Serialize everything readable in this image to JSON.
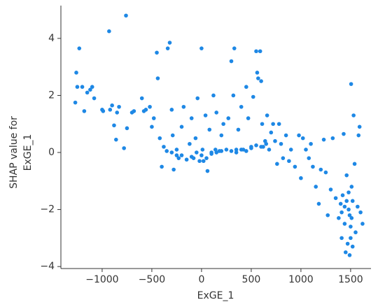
{
  "chart_data": {
    "type": "scatter",
    "xlabel": "ExGE_1",
    "ylabel": [
      "SHAP value for",
      "ExGE_1"
    ],
    "color": "#1e88e5",
    "xlim": [
      -1415,
      1705
    ],
    "ylim": [
      -4.07,
      5.15
    ],
    "xticks": [
      {
        "value": -1000,
        "label": "−1000"
      },
      {
        "value": -500,
        "label": "−500"
      },
      0,
      500,
      1000,
      1500
    ],
    "yticks": [
      {
        "value": -4,
        "label": "−4"
      },
      {
        "value": -2,
        "label": "−2"
      },
      0,
      2,
      4
    ],
    "x": [
      -1260,
      -1250,
      -1230,
      -1270,
      -1200,
      -1180,
      -1150,
      -1120,
      -1100,
      -1080,
      -1000,
      -990,
      -930,
      -920,
      -900,
      -880,
      -860,
      -850,
      -830,
      -780,
      -760,
      -750,
      -700,
      -680,
      -600,
      -580,
      -560,
      -520,
      -500,
      -480,
      -450,
      -440,
      -420,
      -400,
      -380,
      -350,
      -340,
      -320,
      -300,
      -290,
      -280,
      -250,
      -230,
      -200,
      -180,
      -150,
      -120,
      -100,
      -80,
      -60,
      -40,
      -20,
      0,
      10,
      20,
      40,
      50,
      60,
      80,
      100,
      120,
      140,
      150,
      180,
      200,
      220,
      250,
      270,
      300,
      320,
      330,
      350,
      370,
      400,
      420,
      450,
      470,
      500,
      520,
      550,
      560,
      570,
      590,
      600,
      610,
      620,
      640,
      660,
      680,
      700,
      720,
      740,
      760,
      780,
      800,
      820,
      850,
      880,
      900,
      940,
      980,
      1000,
      1020,
      1050,
      1080,
      1100,
      1120,
      1150,
      1180,
      1200,
      1230,
      1250,
      1270,
      1300,
      1320,
      1350,
      1380,
      1400,
      1410,
      1420,
      1430,
      1440,
      1450,
      1460,
      1470,
      1480,
      1490,
      1500,
      1505,
      1510,
      1520,
      1530,
      1540,
      1550,
      1570,
      1580,
      1590,
      1600,
      1620,
      1460,
      1480,
      1510,
      1500,
      1490,
      1520,
      1410,
      1440,
      -300,
      -200,
      -100,
      0,
      100,
      200,
      300,
      400,
      500,
      600,
      650,
      -250,
      -50,
      150,
      350,
      450,
      550
    ],
    "values": [
      2.8,
      2.3,
      3.65,
      1.75,
      2.3,
      1.45,
      2.1,
      2.2,
      2.3,
      1.9,
      1.5,
      1.45,
      4.25,
      1.5,
      1.65,
      0.95,
      0.45,
      1.4,
      1.6,
      0.15,
      4.8,
      0.85,
      1.4,
      1.45,
      1.9,
      1.45,
      1.5,
      1.6,
      0.9,
      1.2,
      3.5,
      2.6,
      0.5,
      -0.5,
      0.2,
      0.05,
      3.65,
      3.85,
      1.5,
      0.6,
      -0.6,
      -0.1,
      -0.2,
      0.9,
      1.6,
      -0.25,
      0.3,
      1.2,
      -0.2,
      0.5,
      1.9,
      -0.3,
      3.65,
      0.1,
      -0.3,
      1.3,
      -0.2,
      -0.65,
      0.8,
      0.0,
      2.0,
      0.1,
      1.4,
      0.05,
      0.6,
      1.0,
      0.1,
      1.2,
      3.2,
      2.0,
      3.65,
      0.0,
      0.8,
      1.6,
      0.1,
      2.3,
      1.2,
      0.2,
      1.95,
      3.55,
      2.8,
      2.6,
      3.55,
      2.5,
      1.0,
      0.2,
      0.4,
      1.3,
      0.1,
      0.7,
      1.0,
      0.4,
      -0.4,
      1.0,
      0.3,
      -0.2,
      0.6,
      -0.3,
      0.1,
      -0.5,
      0.6,
      -0.9,
      0.5,
      0.1,
      -0.2,
      0.3,
      -0.5,
      -1.2,
      -1.8,
      -0.6,
      0.45,
      -0.7,
      -2.2,
      -1.3,
      0.5,
      -1.6,
      -2.3,
      -1.8,
      -3.0,
      -1.5,
      0.65,
      -2.5,
      -3.5,
      -1.7,
      -3.2,
      -2.0,
      -3.6,
      -2.6,
      2.4,
      -1.2,
      -3.3,
      1.3,
      -0.4,
      -2.8,
      -1.9,
      0.6,
      0.9,
      -2.1,
      -2.5,
      -0.8,
      -1.4,
      -2.3,
      -3.0,
      -2.2,
      -1.7,
      -2.1,
      -1.9,
      0.0,
      -0.1,
      -0.15,
      -0.1,
      -0.05,
      0.05,
      0.05,
      0.1,
      0.15,
      0.2,
      0.3,
      0.1,
      0.0,
      0.0,
      0.1,
      0.05,
      0.25
    ]
  }
}
